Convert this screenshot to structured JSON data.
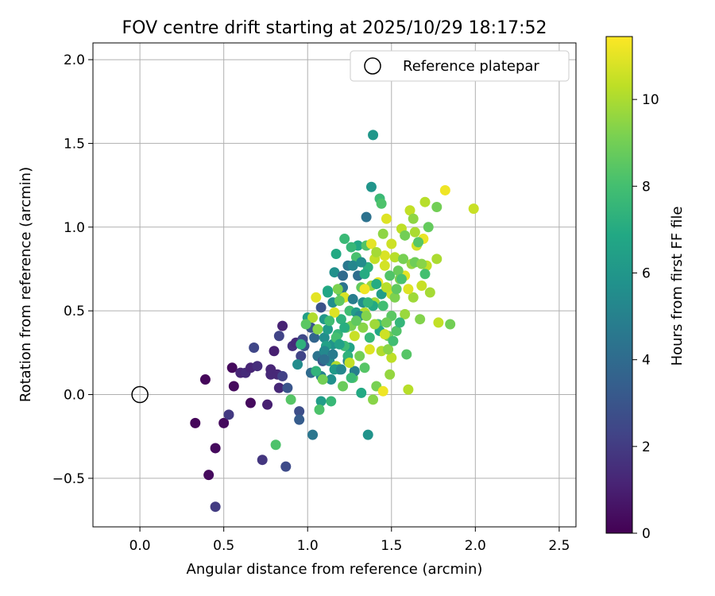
{
  "chart_data": {
    "type": "scatter",
    "title": "FOV centre drift starting at 2025/10/29 18:17:52",
    "xlabel": "Angular distance from reference (arcmin)",
    "ylabel": "Rotation from reference (arcmin)",
    "xlim": [
      -0.28,
      2.6
    ],
    "ylim": [
      -0.79,
      2.1
    ],
    "x_ticks": [
      0.0,
      0.5,
      1.0,
      1.5,
      2.0,
      2.5
    ],
    "x_tick_labels": [
      "0.0",
      "0.5",
      "1.0",
      "1.5",
      "2.0",
      "2.5"
    ],
    "y_ticks": [
      -0.5,
      0.0,
      0.5,
      1.0,
      1.5,
      2.0
    ],
    "y_tick_labels": [
      "−0.5",
      "0.0",
      "0.5",
      "1.0",
      "1.5",
      "2.0"
    ],
    "grid": true,
    "legend": {
      "position": "top-right",
      "entries": [
        "Reference platepar"
      ]
    },
    "reference_point": {
      "x": 0.0,
      "y": 0.0,
      "label": "Reference platepar"
    },
    "colorbar": {
      "label": "Hours from first FF file",
      "colormap": "viridis",
      "range": [
        0,
        11.45
      ],
      "ticks": [
        0,
        2,
        4,
        6,
        8,
        10
      ],
      "tick_labels": [
        "0",
        "2",
        "4",
        "6",
        "8",
        "10"
      ]
    },
    "points": [
      [
        0.39,
        0.09,
        0.2
      ],
      [
        0.33,
        -0.17,
        0.2
      ],
      [
        0.41,
        -0.48,
        0.3
      ],
      [
        0.45,
        -0.32,
        0.3
      ],
      [
        0.55,
        0.16,
        0.3
      ],
      [
        0.56,
        0.05,
        0.3
      ],
      [
        0.5,
        -0.17,
        0.3
      ],
      [
        0.66,
        -0.05,
        0.3
      ],
      [
        0.53,
        -0.12,
        1.9
      ],
      [
        0.45,
        -0.67,
        2.0
      ],
      [
        0.6,
        0.13,
        1.2
      ],
      [
        0.63,
        0.13,
        1.4
      ],
      [
        0.66,
        0.16,
        1.2
      ],
      [
        0.7,
        0.17,
        1.5
      ],
      [
        0.68,
        0.28,
        2.4
      ],
      [
        0.73,
        -0.39,
        1.8
      ],
      [
        0.76,
        -0.06,
        1.0
      ],
      [
        0.78,
        0.15,
        1.2
      ],
      [
        0.78,
        0.12,
        1.3
      ],
      [
        0.8,
        0.26,
        1.0
      ],
      [
        0.82,
        0.12,
        1.3
      ],
      [
        0.83,
        0.35,
        2.3
      ],
      [
        0.85,
        0.41,
        1.1
      ],
      [
        0.85,
        0.11,
        2.2
      ],
      [
        0.83,
        0.04,
        1.3
      ],
      [
        0.87,
        -0.43,
        2.6
      ],
      [
        0.88,
        0.04,
        3.0
      ],
      [
        0.91,
        0.29,
        1.6
      ],
      [
        0.93,
        0.31,
        1.4
      ],
      [
        0.95,
        -0.1,
        2.7
      ],
      [
        0.95,
        -0.15,
        3.3
      ],
      [
        0.96,
        0.23,
        2.3
      ],
      [
        0.97,
        0.33,
        2.5
      ],
      [
        0.98,
        0.29,
        2.8
      ],
      [
        1.0,
        0.46,
        6.4
      ],
      [
        1.02,
        0.4,
        3.1
      ],
      [
        1.02,
        0.13,
        4.0
      ],
      [
        1.03,
        -0.24,
        4.5
      ],
      [
        1.04,
        0.34,
        3.7
      ],
      [
        1.05,
        0.58,
        11.0
      ],
      [
        1.06,
        0.23,
        4.4
      ],
      [
        1.08,
        0.11,
        5.1
      ],
      [
        1.08,
        0.52,
        2.9
      ],
      [
        1.09,
        0.2,
        3.2
      ],
      [
        1.1,
        0.34,
        5.6
      ],
      [
        1.1,
        0.45,
        6.0
      ],
      [
        1.12,
        0.39,
        6.2
      ],
      [
        1.12,
        0.62,
        7.0
      ],
      [
        1.13,
        0.2,
        5.5
      ],
      [
        1.14,
        0.09,
        5.7
      ],
      [
        1.14,
        -0.04,
        7.6
      ],
      [
        1.15,
        0.3,
        5.8
      ],
      [
        1.15,
        0.55,
        5.6
      ],
      [
        1.16,
        0.73,
        5.7
      ],
      [
        1.17,
        0.84,
        6.9
      ],
      [
        1.17,
        0.17,
        10.1
      ],
      [
        1.18,
        0.36,
        7.5
      ],
      [
        1.19,
        0.15,
        6.3
      ],
      [
        1.2,
        0.45,
        7.3
      ],
      [
        1.2,
        0.61,
        8.3
      ],
      [
        1.21,
        0.64,
        4.4
      ],
      [
        1.21,
        0.71,
        4.0
      ],
      [
        1.22,
        0.93,
        7.7
      ],
      [
        1.22,
        0.58,
        10.8
      ],
      [
        1.23,
        0.4,
        8.9
      ],
      [
        1.24,
        0.2,
        5.0
      ],
      [
        1.24,
        0.77,
        4.6
      ],
      [
        1.25,
        0.5,
        7.9
      ],
      [
        1.25,
        0.28,
        6.6
      ],
      [
        1.26,
        0.41,
        9.1
      ],
      [
        1.27,
        0.1,
        8.5
      ],
      [
        1.27,
        0.57,
        4.8
      ],
      [
        1.28,
        0.35,
        10.5
      ],
      [
        1.29,
        0.49,
        6.2
      ],
      [
        1.3,
        0.71,
        4.1
      ],
      [
        1.3,
        0.89,
        6.8
      ],
      [
        1.31,
        0.23,
        9.0
      ],
      [
        1.32,
        0.01,
        6.9
      ],
      [
        1.32,
        0.64,
        8.7
      ],
      [
        1.33,
        0.4,
        9.4
      ],
      [
        1.34,
        0.49,
        10.1
      ],
      [
        1.34,
        0.16,
        8.4
      ],
      [
        1.35,
        0.89,
        8.3
      ],
      [
        1.35,
        1.06,
        4.3
      ],
      [
        1.36,
        -0.24,
        5.8
      ],
      [
        1.37,
        0.27,
        10.9
      ],
      [
        1.38,
        0.9,
        11.0
      ],
      [
        1.38,
        0.65,
        9.6
      ],
      [
        1.38,
        1.24,
        5.9
      ],
      [
        1.39,
        1.55,
        6.0
      ],
      [
        1.39,
        -0.03,
        9.4
      ],
      [
        1.4,
        0.55,
        9.9
      ],
      [
        1.4,
        0.81,
        10.4
      ],
      [
        1.41,
        0.05,
        9.1
      ],
      [
        1.42,
        0.67,
        11.1
      ],
      [
        1.42,
        0.42,
        8.0
      ],
      [
        1.43,
        1.17,
        7.7
      ],
      [
        1.44,
        0.26,
        10.1
      ],
      [
        1.45,
        0.02,
        11.2
      ],
      [
        1.45,
        0.96,
        9.5
      ],
      [
        1.46,
        0.77,
        10.7
      ],
      [
        1.47,
        1.05,
        10.9
      ],
      [
        1.48,
        0.35,
        8.9
      ],
      [
        1.49,
        0.12,
        9.6
      ],
      [
        1.49,
        0.71,
        8.3
      ],
      [
        1.5,
        0.22,
        10.3
      ],
      [
        1.5,
        0.6,
        10.5
      ],
      [
        1.5,
        0.47,
        8.5
      ],
      [
        1.52,
        0.82,
        10.2
      ],
      [
        1.53,
        0.38,
        8.3
      ],
      [
        1.55,
        0.69,
        9.2
      ],
      [
        1.56,
        0.99,
        10.3
      ],
      [
        1.57,
        0.81,
        9.1
      ],
      [
        1.58,
        0.48,
        9.7
      ],
      [
        1.58,
        0.71,
        11.0
      ],
      [
        1.6,
        0.03,
        10.2
      ],
      [
        1.61,
        1.1,
        10.4
      ],
      [
        1.63,
        1.05,
        9.5
      ],
      [
        1.63,
        0.58,
        9.8
      ],
      [
        1.64,
        0.97,
        10.0
      ],
      [
        1.65,
        0.89,
        10.7
      ],
      [
        1.67,
        0.45,
        9.3
      ],
      [
        1.68,
        0.65,
        10.5
      ],
      [
        1.69,
        0.93,
        11.1
      ],
      [
        1.7,
        1.15,
        10.2
      ],
      [
        1.71,
        0.77,
        10.4
      ],
      [
        1.72,
        1.0,
        8.7
      ],
      [
        1.77,
        1.12,
        9.0
      ],
      [
        1.77,
        0.81,
        10.0
      ],
      [
        1.78,
        0.43,
        10.4
      ],
      [
        1.82,
        1.22,
        11.2
      ],
      [
        1.85,
        0.42,
        9.0
      ],
      [
        1.99,
        1.11,
        10.5
      ],
      [
        1.5,
        0.9,
        10.6
      ],
      [
        1.46,
        0.83,
        10.8
      ],
      [
        1.41,
        0.85,
        9.9
      ],
      [
        1.36,
        0.76,
        7.2
      ],
      [
        1.34,
        0.63,
        11.2
      ],
      [
        1.29,
        0.82,
        8.1
      ],
      [
        1.27,
        0.77,
        5.2
      ],
      [
        1.26,
        0.88,
        7.6
      ],
      [
        1.24,
        0.23,
        7.3
      ],
      [
        1.22,
        0.29,
        7.8
      ],
      [
        1.21,
        0.05,
        8.8
      ],
      [
        1.19,
        0.56,
        8.6
      ],
      [
        1.18,
        0.63,
        9.2
      ],
      [
        1.17,
        0.34,
        8.0
      ],
      [
        1.16,
        0.49,
        10.9
      ],
      [
        1.13,
        0.44,
        7.9
      ],
      [
        1.11,
        0.29,
        6.5
      ],
      [
        1.09,
        0.09,
        9.0
      ],
      [
        1.08,
        -0.04,
        6.3
      ],
      [
        1.07,
        -0.09,
        8.2
      ],
      [
        1.06,
        0.39,
        9.4
      ],
      [
        1.1,
        0.26,
        5.3
      ],
      [
        1.05,
        0.14,
        7.4
      ],
      [
        1.03,
        0.46,
        10.1
      ],
      [
        0.99,
        0.42,
        8.5
      ],
      [
        0.96,
        0.3,
        7.3
      ],
      [
        0.94,
        0.18,
        5.5
      ],
      [
        0.9,
        -0.03,
        8.4
      ],
      [
        0.81,
        -0.3,
        8.2
      ],
      [
        1.28,
        0.14,
        4.9
      ],
      [
        1.31,
        0.47,
        5.3
      ],
      [
        1.33,
        0.55,
        5.6
      ],
      [
        1.44,
        0.6,
        6.3
      ],
      [
        1.43,
        0.38,
        6.8
      ],
      [
        1.47,
        0.43,
        8.9
      ],
      [
        1.52,
        0.58,
        9.2
      ],
      [
        1.54,
        0.74,
        8.8
      ],
      [
        1.55,
        0.43,
        7.5
      ],
      [
        1.59,
        0.24,
        8.4
      ],
      [
        1.62,
        0.78,
        9.6
      ],
      [
        1.66,
        0.91,
        8.4
      ],
      [
        1.73,
        0.61,
        9.9
      ],
      [
        1.37,
        0.34,
        7.6
      ],
      [
        1.39,
        0.53,
        6.9
      ],
      [
        1.45,
        0.53,
        7.9
      ],
      [
        1.48,
        0.27,
        9.4
      ],
      [
        1.35,
        0.47,
        9.3
      ],
      [
        1.22,
        0.4,
        7.1
      ],
      [
        1.15,
        0.24,
        4.7
      ],
      [
        1.16,
        0.15,
        6.1
      ],
      [
        1.19,
        0.3,
        6.5
      ],
      [
        1.26,
        0.1,
        7.7
      ],
      [
        1.29,
        0.44,
        8.6
      ],
      [
        1.32,
        0.79,
        5.5
      ],
      [
        1.4,
        0.42,
        9.8
      ],
      [
        1.44,
        1.14,
        8.2
      ],
      [
        1.46,
        0.36,
        10.6
      ],
      [
        1.51,
        0.32,
        7.9
      ],
      [
        1.56,
        0.69,
        8.1
      ],
      [
        1.58,
        0.95,
        9.0
      ],
      [
        1.6,
        0.63,
        10.9
      ],
      [
        1.64,
        0.79,
        8.9
      ],
      [
        1.68,
        0.78,
        9.4
      ],
      [
        1.7,
        0.72,
        8.0
      ],
      [
        1.12,
        0.61,
        6.7
      ],
      [
        1.1,
        0.21,
        4.2
      ],
      [
        1.2,
        0.15,
        5.2
      ],
      [
        1.25,
        0.19,
        10.4
      ],
      [
        1.34,
        0.72,
        7.0
      ],
      [
        1.36,
        0.55,
        7.4
      ],
      [
        1.41,
        0.66,
        7.0
      ],
      [
        1.47,
        0.64,
        10.2
      ],
      [
        1.53,
        0.63,
        8.6
      ]
    ]
  }
}
